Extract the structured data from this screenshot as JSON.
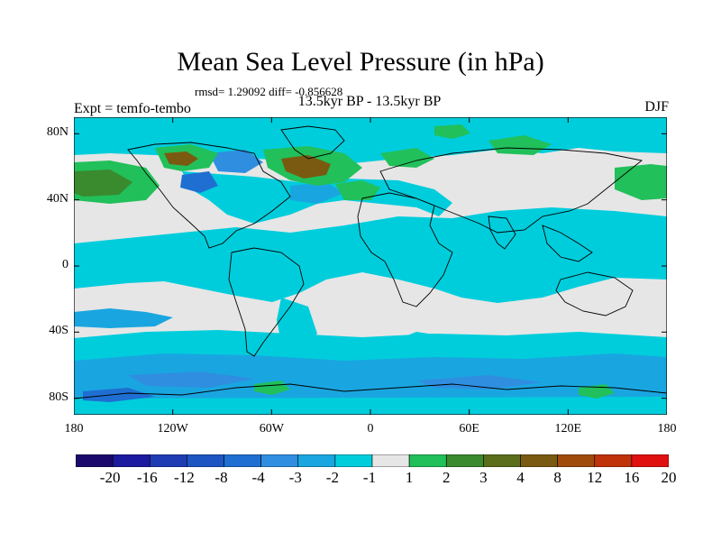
{
  "figure": {
    "title": "Mean Sea Level Pressure (in hPa)",
    "stats_line": "rmsd= 1.29092 diff= -0.856628",
    "period": "13.5kyr BP - 13.5kyr BP",
    "experiment_label": "Expt = temfo-tembo",
    "season": "DJF"
  },
  "axes": {
    "lat_ticks": [
      {
        "label": "80N",
        "value": 80
      },
      {
        "label": "40N",
        "value": 40
      },
      {
        "label": "0",
        "value": 0
      },
      {
        "label": "40S",
        "value": -40
      },
      {
        "label": "80S",
        "value": -80
      }
    ],
    "lon_ticks": [
      {
        "label": "180",
        "value": -180
      },
      {
        "label": "120W",
        "value": -120
      },
      {
        "label": "60W",
        "value": -60
      },
      {
        "label": "0",
        "value": 0
      },
      {
        "label": "60E",
        "value": 60
      },
      {
        "label": "120E",
        "value": 120
      },
      {
        "label": "180",
        "value": 180
      }
    ]
  },
  "colorbar": {
    "labels": [
      "-20",
      "-16",
      "-12",
      "-8",
      "-4",
      "-3",
      "-2",
      "-1",
      "1",
      "2",
      "3",
      "4",
      "8",
      "12",
      "16",
      "20"
    ],
    "colors": [
      "#1b0a6b",
      "#1c1a9e",
      "#1f3cb5",
      "#1d55c3",
      "#1f6fd2",
      "#2f8ee0",
      "#19a6e0",
      "#00cddc",
      "#e6e6e6",
      "#21c05a",
      "#3a8a2e",
      "#5a6e1c",
      "#7a5a10",
      "#a04a0c",
      "#c0320a",
      "#e01010"
    ]
  },
  "colors": {
    "neutral": "#e6e6e6",
    "light_cyan": "#00cddc",
    "cyan": "#19a6e0",
    "blue": "#2f8ee0",
    "dark_blue": "#1f6fd2",
    "green": "#21c05a",
    "dark_green": "#3a8a2e",
    "brown": "#7a5a10",
    "coast": "#000000"
  }
}
